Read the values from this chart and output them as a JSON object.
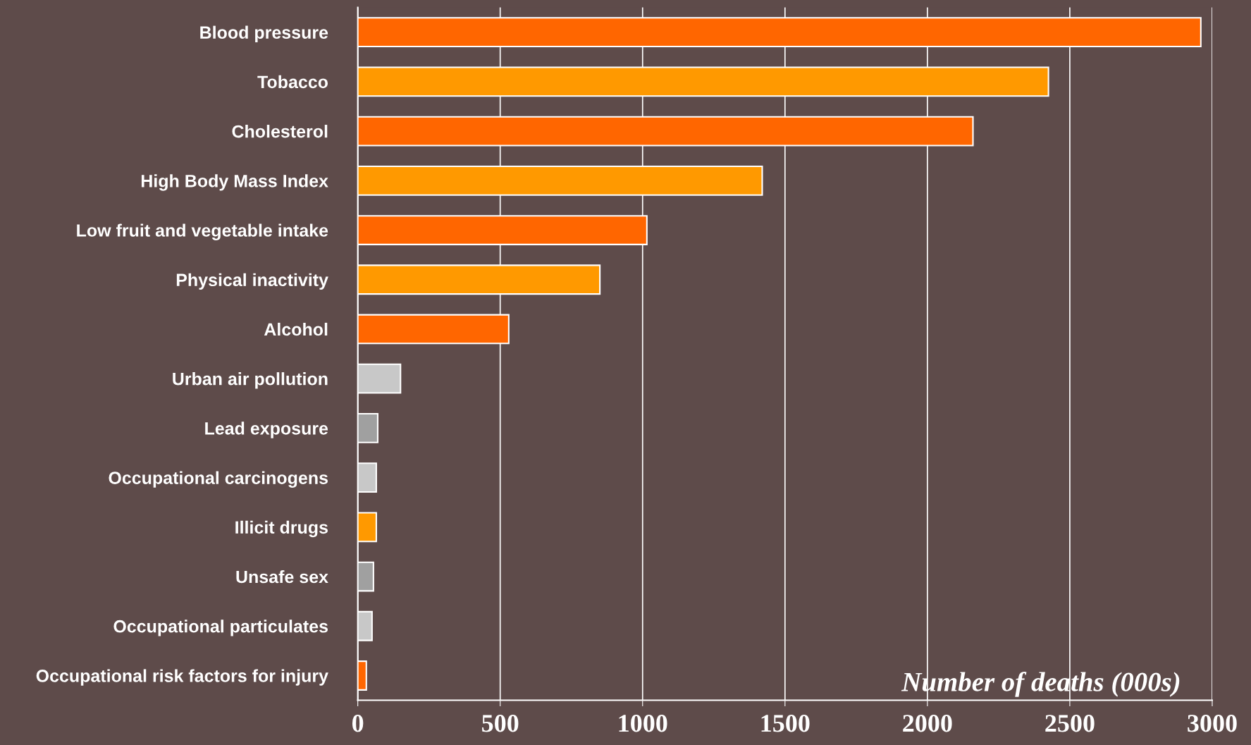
{
  "chart_data": {
    "type": "bar",
    "orientation": "horizontal",
    "xlabel": "Number of deaths (000s)",
    "categories": [
      "Blood pressure",
      "Tobacco",
      "Cholesterol",
      "High Body Mass Index",
      "Low fruit and vegetable intake",
      "Physical inactivity",
      "Alcohol",
      "Urban air pollution",
      "Lead exposure",
      "Occupational carcinogens",
      "Illicit drugs",
      "Unsafe sex",
      "Occupational particulates",
      "Occupational risk factors for injury"
    ],
    "values": [
      2960,
      2425,
      2160,
      1420,
      1015,
      850,
      530,
      150,
      70,
      65,
      65,
      55,
      50,
      30
    ],
    "colors": [
      "#ff6600",
      "#ff9900",
      "#ff6600",
      "#ff9900",
      "#ff6600",
      "#ff9900",
      "#ff6600",
      "#c8c8c8",
      "#a0a0a0",
      "#c8c8c8",
      "#ff9900",
      "#a0a0a0",
      "#c8c8c8",
      "#ff6600"
    ],
    "xlim": [
      0,
      3000
    ],
    "xticks": [
      0,
      500,
      1000,
      1500,
      2000,
      2500,
      3000
    ],
    "grid": "x",
    "legend": false
  }
}
